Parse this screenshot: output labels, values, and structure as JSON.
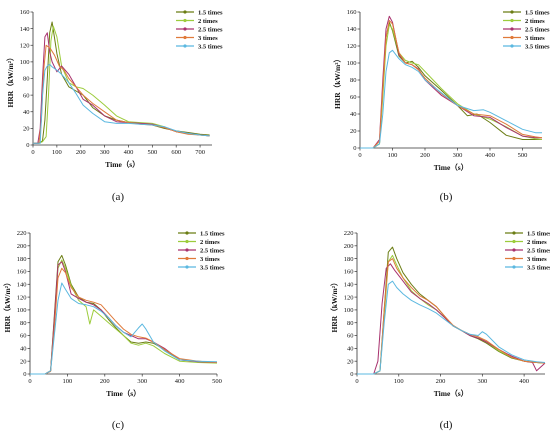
{
  "colors": {
    "1.5 times": "#6b7d14",
    "2  times": "#9ccc3c",
    "2.5 times": "#a8326e",
    "3  times": "#e07a3a",
    "3.5 times": "#5bb8e0"
  },
  "chart_data": [
    {
      "type": "line",
      "panel_label": "(a)",
      "xlabel": "Time（s）",
      "ylabel": "HRR（kW/m²）",
      "xlim": [
        0,
        750
      ],
      "ylim": [
        0,
        160
      ],
      "xticks": [
        0,
        100,
        200,
        300,
        400,
        500,
        600,
        700
      ],
      "yticks": [
        0,
        20,
        40,
        60,
        80,
        100,
        120,
        140,
        160
      ],
      "legend_position": "top-right",
      "series": [
        {
          "name": "1.5 times",
          "x": [
            0,
            25,
            40,
            50,
            60,
            70,
            80,
            100,
            120,
            150,
            180,
            210,
            250,
            300,
            350,
            400,
            450,
            500,
            550,
            600,
            650,
            700,
            740
          ],
          "y": [
            2,
            2,
            5,
            30,
            80,
            135,
            148,
            110,
            85,
            70,
            65,
            60,
            45,
            35,
            30,
            27,
            26,
            24,
            20,
            17,
            15,
            13,
            12
          ]
        },
        {
          "name": "2  times",
          "x": [
            0,
            25,
            40,
            55,
            65,
            75,
            85,
            100,
            120,
            150,
            180,
            210,
            250,
            300,
            350,
            400,
            450,
            500,
            550,
            600,
            650,
            700,
            740
          ],
          "y": [
            2,
            2,
            4,
            10,
            60,
            125,
            143,
            130,
            95,
            75,
            70,
            68,
            60,
            48,
            35,
            28,
            27,
            26,
            22,
            16,
            14,
            12,
            11
          ]
        },
        {
          "name": "2.5 times",
          "x": [
            0,
            20,
            30,
            40,
            50,
            60,
            70,
            80,
            100,
            120,
            150,
            180,
            210,
            250,
            300,
            350,
            400,
            450,
            500,
            550,
            600,
            650,
            700,
            740
          ],
          "y": [
            2,
            2,
            20,
            80,
            130,
            135,
            112,
            100,
            88,
            95,
            85,
            70,
            55,
            48,
            35,
            28,
            27,
            26,
            25,
            21,
            16,
            14,
            12,
            11
          ]
        },
        {
          "name": "3  times",
          "x": [
            0,
            25,
            35,
            45,
            55,
            65,
            75,
            90,
            110,
            130,
            150,
            180,
            210,
            250,
            300,
            350,
            400,
            450,
            500,
            550,
            600,
            650,
            700,
            740
          ],
          "y": [
            2,
            2,
            30,
            90,
            120,
            118,
            115,
            108,
            95,
            90,
            80,
            70,
            60,
            50,
            40,
            30,
            27,
            25,
            24,
            21,
            16,
            13,
            12,
            11
          ]
        },
        {
          "name": "3.5 times",
          "x": [
            0,
            30,
            40,
            50,
            60,
            70,
            80,
            100,
            120,
            150,
            180,
            210,
            250,
            300,
            350,
            400,
            450,
            500,
            550,
            600,
            650,
            700,
            740
          ],
          "y": [
            2,
            2,
            60,
            90,
            95,
            97,
            94,
            90,
            85,
            75,
            62,
            48,
            38,
            28,
            26,
            26,
            25,
            24,
            22,
            17,
            14,
            12,
            11
          ]
        }
      ]
    },
    {
      "type": "line",
      "panel_label": "(b)",
      "xlabel": "Time（s）",
      "ylabel": "HRR（kW/m²）",
      "xlim": [
        0,
        560
      ],
      "ylim": [
        0,
        160
      ],
      "xticks": [
        0,
        100,
        200,
        300,
        400,
        500
      ],
      "yticks": [
        0,
        20,
        40,
        60,
        80,
        100,
        120,
        140,
        160
      ],
      "legend_position": "top-right",
      "series": [
        {
          "name": "1.5 times",
          "x": [
            0,
            40,
            60,
            70,
            80,
            90,
            100,
            120,
            140,
            160,
            180,
            200,
            250,
            300,
            330,
            360,
            400,
            450,
            500,
            540,
            560
          ],
          "y": [
            0,
            0,
            5,
            70,
            130,
            148,
            138,
            108,
            100,
            102,
            95,
            85,
            68,
            50,
            38,
            40,
            30,
            15,
            10,
            10,
            10
          ]
        },
        {
          "name": "2  times",
          "x": [
            0,
            40,
            60,
            70,
            80,
            90,
            100,
            120,
            140,
            160,
            180,
            200,
            250,
            300,
            350,
            400,
            450,
            500,
            540,
            560
          ],
          "y": [
            0,
            0,
            5,
            60,
            120,
            145,
            140,
            112,
            103,
            100,
            98,
            90,
            70,
            52,
            40,
            34,
            25,
            14,
            11,
            10
          ]
        },
        {
          "name": "2.5 times",
          "x": [
            0,
            40,
            60,
            70,
            80,
            90,
            100,
            120,
            140,
            160,
            180,
            200,
            250,
            300,
            350,
            400,
            450,
            500,
            540,
            560
          ],
          "y": [
            0,
            0,
            10,
            80,
            140,
            155,
            148,
            110,
            100,
            98,
            93,
            80,
            62,
            50,
            38,
            36,
            24,
            14,
            12,
            12
          ]
        },
        {
          "name": "3  times",
          "x": [
            0,
            40,
            60,
            70,
            80,
            90,
            100,
            120,
            140,
            160,
            180,
            200,
            250,
            300,
            350,
            400,
            450,
            500,
            540,
            560
          ],
          "y": [
            0,
            0,
            8,
            70,
            130,
            150,
            146,
            112,
            100,
            98,
            92,
            82,
            64,
            50,
            40,
            38,
            28,
            16,
            13,
            12
          ]
        },
        {
          "name": "3.5 times",
          "x": [
            0,
            40,
            60,
            70,
            80,
            90,
            100,
            120,
            140,
            160,
            180,
            200,
            250,
            300,
            350,
            380,
            400,
            450,
            500,
            540,
            560
          ],
          "y": [
            0,
            0,
            5,
            40,
            90,
            112,
            115,
            105,
            98,
            95,
            90,
            80,
            65,
            50,
            44,
            45,
            42,
            32,
            22,
            18,
            18
          ]
        }
      ]
    },
    {
      "type": "line",
      "panel_label": "(c)",
      "xlabel": "Time（s）",
      "ylabel": "HRR（kW/m²）",
      "xlim": [
        0,
        500
      ],
      "ylim": [
        0,
        220
      ],
      "xticks": [
        0,
        100,
        200,
        300,
        400,
        500
      ],
      "yticks": [
        0,
        20,
        40,
        60,
        80,
        100,
        120,
        140,
        160,
        180,
        200,
        220
      ],
      "legend_position": "top-right",
      "series": [
        {
          "name": "1.5 times",
          "x": [
            0,
            40,
            55,
            65,
            75,
            85,
            95,
            110,
            130,
            150,
            170,
            190,
            210,
            230,
            250,
            270,
            290,
            310,
            330,
            360,
            400,
            450,
            500
          ],
          "y": [
            0,
            0,
            5,
            90,
            175,
            185,
            170,
            140,
            120,
            112,
            110,
            100,
            85,
            72,
            60,
            50,
            48,
            50,
            48,
            38,
            22,
            20,
            18
          ]
        },
        {
          "name": "2  times",
          "x": [
            0,
            40,
            55,
            65,
            75,
            85,
            95,
            110,
            130,
            150,
            160,
            170,
            190,
            210,
            230,
            250,
            270,
            290,
            310,
            330,
            360,
            400,
            450,
            500
          ],
          "y": [
            0,
            0,
            5,
            80,
            165,
            178,
            165,
            138,
            115,
            105,
            78,
            100,
            90,
            80,
            70,
            60,
            48,
            45,
            48,
            44,
            32,
            20,
            18,
            17
          ]
        },
        {
          "name": "2.5 times",
          "x": [
            0,
            40,
            55,
            65,
            75,
            85,
            95,
            110,
            130,
            150,
            170,
            190,
            210,
            230,
            250,
            270,
            290,
            310,
            330,
            360,
            400,
            450,
            500
          ],
          "y": [
            0,
            0,
            5,
            85,
            170,
            175,
            160,
            125,
            118,
            112,
            108,
            100,
            88,
            75,
            65,
            60,
            55,
            55,
            50,
            40,
            22,
            19,
            18
          ]
        },
        {
          "name": "3  times",
          "x": [
            0,
            40,
            55,
            65,
            75,
            85,
            95,
            110,
            130,
            150,
            170,
            190,
            210,
            230,
            250,
            270,
            290,
            310,
            330,
            360,
            400,
            450,
            500
          ],
          "y": [
            0,
            0,
            4,
            70,
            150,
            165,
            158,
            135,
            120,
            115,
            112,
            108,
            95,
            82,
            70,
            62,
            58,
            56,
            50,
            38,
            24,
            20,
            18
          ]
        },
        {
          "name": "3.5 times",
          "x": [
            0,
            40,
            55,
            65,
            75,
            85,
            95,
            110,
            130,
            150,
            170,
            190,
            210,
            230,
            250,
            270,
            290,
            300,
            310,
            330,
            360,
            400,
            450,
            500
          ],
          "y": [
            0,
            0,
            5,
            60,
            115,
            142,
            132,
            118,
            110,
            108,
            105,
            98,
            88,
            75,
            65,
            58,
            72,
            78,
            70,
            50,
            36,
            22,
            20,
            19
          ]
        }
      ]
    },
    {
      "type": "line",
      "panel_label": "(d)",
      "xlabel": "Time（s）",
      "ylabel": "HRR（kW/m²）",
      "xlim": [
        0,
        450
      ],
      "ylim": [
        0,
        220
      ],
      "xticks": [
        0,
        100,
        200,
        300,
        400
      ],
      "yticks": [
        0,
        20,
        40,
        60,
        80,
        100,
        120,
        140,
        160,
        180,
        200,
        220
      ],
      "legend_position": "top-right",
      "series": [
        {
          "name": "1.5 times",
          "x": [
            0,
            40,
            55,
            65,
            75,
            85,
            95,
            110,
            130,
            150,
            170,
            190,
            210,
            230,
            250,
            270,
            290,
            310,
            340,
            370,
            400,
            430,
            450
          ],
          "y": [
            0,
            0,
            5,
            100,
            190,
            198,
            180,
            158,
            140,
            125,
            115,
            105,
            90,
            75,
            68,
            60,
            55,
            48,
            35,
            25,
            20,
            18,
            17
          ]
        },
        {
          "name": "2  times",
          "x": [
            0,
            40,
            55,
            65,
            75,
            85,
            95,
            110,
            130,
            150,
            170,
            190,
            210,
            230,
            250,
            270,
            290,
            310,
            340,
            370,
            400,
            430,
            450
          ],
          "y": [
            0,
            0,
            5,
            90,
            175,
            185,
            170,
            150,
            130,
            118,
            108,
            100,
            88,
            75,
            68,
            62,
            58,
            50,
            36,
            26,
            20,
            18,
            17
          ]
        },
        {
          "name": "2.5 times",
          "x": [
            0,
            40,
            50,
            60,
            70,
            80,
            90,
            110,
            130,
            150,
            170,
            190,
            210,
            230,
            250,
            270,
            290,
            310,
            340,
            370,
            400,
            420,
            430,
            450
          ],
          "y": [
            0,
            0,
            20,
            110,
            165,
            172,
            162,
            145,
            128,
            118,
            110,
            100,
            88,
            75,
            68,
            60,
            56,
            50,
            38,
            28,
            20,
            18,
            5,
            17
          ]
        },
        {
          "name": "3  times",
          "x": [
            0,
            40,
            55,
            65,
            75,
            85,
            95,
            110,
            130,
            150,
            170,
            190,
            210,
            230,
            250,
            270,
            290,
            310,
            340,
            370,
            400,
            430,
            450
          ],
          "y": [
            0,
            0,
            5,
            100,
            175,
            180,
            165,
            150,
            135,
            122,
            115,
            105,
            90,
            76,
            68,
            62,
            58,
            52,
            38,
            26,
            20,
            18,
            17
          ]
        },
        {
          "name": "3.5 times",
          "x": [
            0,
            40,
            55,
            65,
            75,
            85,
            95,
            110,
            130,
            150,
            170,
            190,
            210,
            230,
            250,
            270,
            290,
            300,
            310,
            340,
            370,
            400,
            430,
            450
          ],
          "y": [
            0,
            0,
            5,
            80,
            140,
            145,
            135,
            125,
            115,
            108,
            102,
            95,
            85,
            75,
            68,
            62,
            60,
            66,
            62,
            42,
            30,
            22,
            19,
            18
          ]
        }
      ]
    }
  ]
}
